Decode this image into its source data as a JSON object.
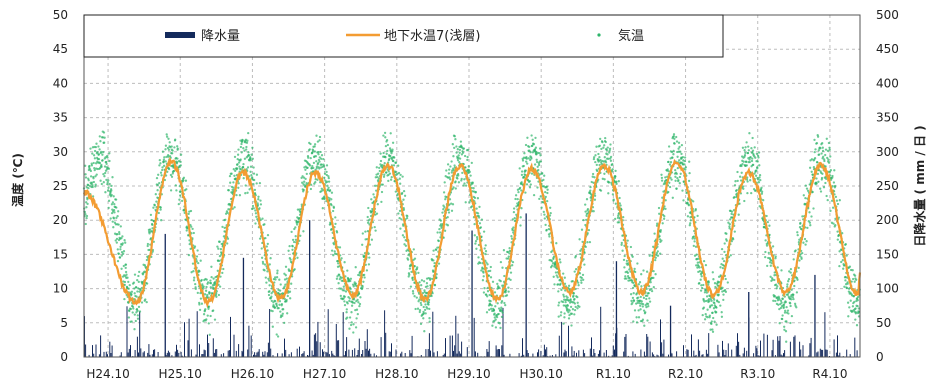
{
  "chart_data": {
    "type": "line",
    "title": "",
    "ylabel_left": "温度 (℃)",
    "ylabel_right": "日降水量 ( mm / 日 )",
    "ylim_left": [
      0,
      50
    ],
    "ylim_right": [
      0,
      500
    ],
    "yticks_left": [
      "0",
      "5",
      "10",
      "15",
      "20",
      "25",
      "30",
      "35",
      "40",
      "45",
      "50"
    ],
    "yticks_right": [
      "0",
      "50",
      "100",
      "150",
      "200",
      "250",
      "300",
      "350",
      "400",
      "450",
      "500"
    ],
    "x_range_months": [
      "2012-06",
      "2023-03"
    ],
    "xtick_labels": [
      "H24.10",
      "H25.10",
      "H26.10",
      "H27.10",
      "H28.10",
      "H29.10",
      "H30.10",
      "R1.10",
      "R2.10",
      "R3.10",
      "R4.10"
    ],
    "grid": true,
    "legend": {
      "placement": "top",
      "colors": {
        "precip": "#142a5c",
        "groundwater": "#f39c32",
        "air": "#2db56a"
      }
    },
    "series": [
      {
        "name": "降水量",
        "kind": "bar",
        "axis": "right",
        "note": "daily precipitation, mostly 0–60 mm with occasional peaks",
        "peaks": [
          {
            "date": "2013-07",
            "value": 180
          },
          {
            "date": "2014-08",
            "value": 145
          },
          {
            "date": "2015-07",
            "value": 200
          },
          {
            "date": "2017-10",
            "value": 185
          },
          {
            "date": "2018-07",
            "value": 210
          },
          {
            "date": "2019-10",
            "value": 140
          },
          {
            "date": "2020-07",
            "value": 75
          },
          {
            "date": "2021-08",
            "value": 95
          },
          {
            "date": "2022-07",
            "value": 120
          }
        ]
      },
      {
        "name": "地下水温7(浅層)",
        "kind": "line",
        "axis": "left",
        "note": "seasonal cycle, peak ~Aug–Sep, trough ~Feb–Mar",
        "annual_max": [
          28.5,
          27.0,
          27.0,
          28.0,
          28.0,
          27.5,
          28.0,
          28.5,
          27.0,
          28.0
        ],
        "annual_min": [
          8.0,
          8.0,
          8.5,
          9.0,
          8.5,
          8.5,
          9.5,
          9.5,
          9.0,
          9.5,
          9.0
        ],
        "start_value": 24.0,
        "end_value": 12.0
      },
      {
        "name": "気温",
        "kind": "scatter",
        "axis": "left",
        "note": "daily air temperature, seasonal range ~3–32",
        "typical_summer": 29,
        "typical_winter": 8
      }
    ]
  }
}
